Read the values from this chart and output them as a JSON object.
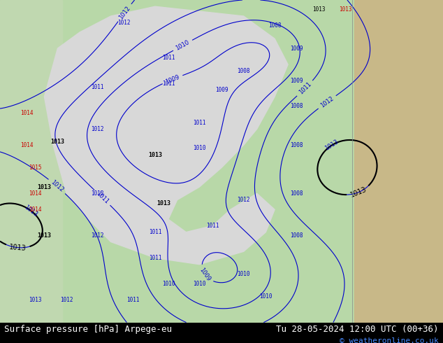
{
  "title_left": "Surface pressure [hPa] Arpege-eu",
  "title_right": "Tu 28-05-2024 12:00 UTC (00+36)",
  "copyright": "© weatheronline.co.uk",
  "bg_color_map": "#c8e6c0",
  "bg_color_right": "#c8b88a",
  "bg_color_ocean": "#d8ecd8",
  "fig_width": 6.34,
  "fig_height": 4.9,
  "dpi": 100,
  "bottom_bar_color": "#000000",
  "bottom_bar_height": 0.06,
  "text_color": "#000000",
  "title_fontsize": 9,
  "copyright_fontsize": 8
}
